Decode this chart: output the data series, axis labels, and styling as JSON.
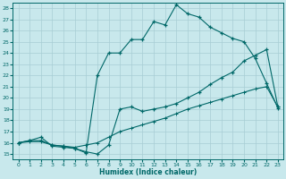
{
  "xlabel": "Humidex (Indice chaleur)",
  "bg_color": "#c8e8ec",
  "grid_color": "#a8cdd4",
  "line_color": "#006868",
  "xlim": [
    -0.5,
    23.5
  ],
  "ylim": [
    14.5,
    28.5
  ],
  "xticks": [
    0,
    1,
    2,
    3,
    4,
    5,
    6,
    7,
    8,
    9,
    10,
    11,
    12,
    13,
    14,
    15,
    16,
    17,
    18,
    19,
    20,
    21,
    22,
    23
  ],
  "yticks": [
    15,
    16,
    17,
    18,
    19,
    20,
    21,
    22,
    23,
    24,
    25,
    26,
    27,
    28
  ],
  "curve_jagged_x": [
    0,
    1,
    2,
    3,
    4,
    5,
    6,
    7,
    8,
    9,
    10,
    11,
    12,
    13,
    14,
    15,
    16,
    17,
    18,
    19,
    20,
    21,
    22,
    23
  ],
  "curve_jagged_y": [
    16.0,
    16.2,
    16.5,
    15.7,
    15.6,
    15.5,
    15.1,
    22.0,
    24.0,
    24.0,
    25.2,
    25.2,
    26.8,
    26.5,
    28.3,
    27.5,
    27.2,
    26.3,
    25.8,
    25.3,
    25.0,
    23.5,
    21.3,
    19.1
  ],
  "curve_mid_x": [
    0,
    1,
    2,
    3,
    4,
    5,
    6,
    7,
    8,
    9,
    10,
    11,
    12,
    13,
    14,
    15,
    16,
    17,
    18,
    19,
    20,
    21,
    22,
    23
  ],
  "curve_mid_y": [
    16.0,
    16.2,
    16.2,
    15.8,
    15.7,
    15.5,
    15.2,
    15.0,
    15.8,
    19.0,
    19.2,
    18.8,
    19.0,
    19.2,
    19.5,
    20.0,
    20.5,
    21.2,
    21.8,
    22.3,
    23.3,
    23.8,
    24.3,
    19.2
  ],
  "curve_straight_x": [
    0,
    1,
    2,
    3,
    4,
    5,
    6,
    7,
    8,
    9,
    10,
    11,
    12,
    13,
    14,
    15,
    16,
    17,
    18,
    19,
    20,
    21,
    22,
    23
  ],
  "curve_straight_y": [
    16.0,
    16.1,
    16.1,
    15.8,
    15.7,
    15.6,
    15.8,
    16.0,
    16.5,
    17.0,
    17.3,
    17.6,
    17.9,
    18.2,
    18.6,
    19.0,
    19.3,
    19.6,
    19.9,
    20.2,
    20.5,
    20.8,
    21.0,
    19.2
  ]
}
